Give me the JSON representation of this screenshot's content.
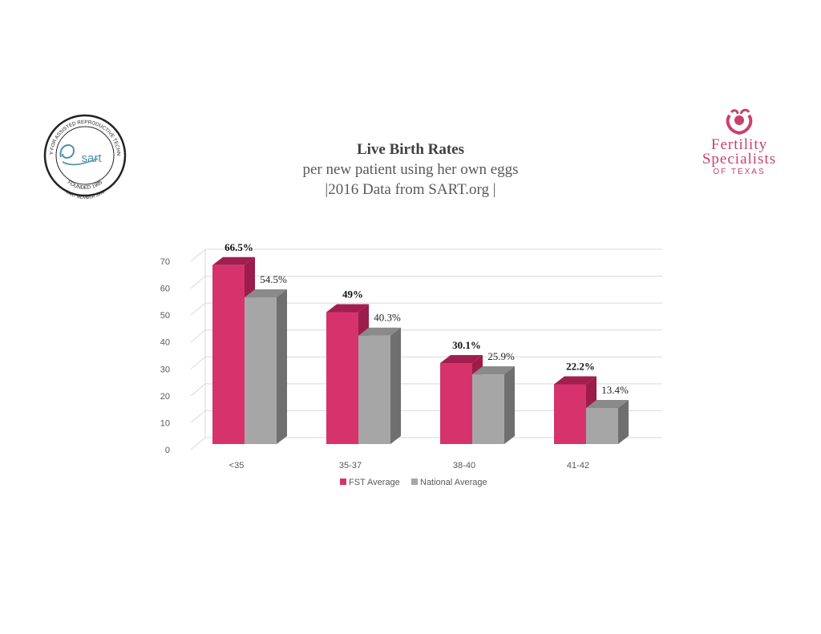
{
  "title": {
    "line1": "Live Birth Rates",
    "line2": "per new patient using her own eggs",
    "line3": "|2016 Data from SART.org |"
  },
  "sart_logo": {
    "ring_text": "SOCIETY FOR ASSISTED REPRODUCTIVE TECHNOLOGY",
    "mark_text": "sart",
    "founded": "FOUNDED 1985",
    "member": "SART MEMBER 2018"
  },
  "fst_logo": {
    "line1": "Fertility",
    "line2": "Specialists",
    "line3": "OF TEXAS",
    "icon": "hands-heart-icon"
  },
  "colors": {
    "fst": "#d6336c",
    "fst_top": "#a11f4f",
    "fst_side": "#9c1c4a",
    "national": "#a6a6a6",
    "national_top": "#8a8a8a",
    "national_side": "#6f6f6f",
    "grid": "#d9d9d9",
    "axis_text": "#595959"
  },
  "chart_data": {
    "type": "bar",
    "categories": [
      "<35",
      "35-37",
      "38-40",
      "41-42"
    ],
    "series": [
      {
        "name": "FST Average",
        "values": [
          66.5,
          49,
          30.1,
          22.2
        ],
        "labels": [
          "66.5%",
          "49%",
          "30.1%",
          "22.2%"
        ]
      },
      {
        "name": "National Average",
        "values": [
          54.5,
          40.3,
          25.9,
          13.4
        ],
        "labels": [
          "54.5%",
          "40.3%",
          "25.9%",
          "13.4%"
        ]
      }
    ],
    "yticks": [
      0,
      10,
      20,
      30,
      40,
      50,
      60,
      70
    ],
    "ylim": [
      0,
      70
    ],
    "grid": true,
    "legend": "bottom",
    "style": "3d-column"
  }
}
